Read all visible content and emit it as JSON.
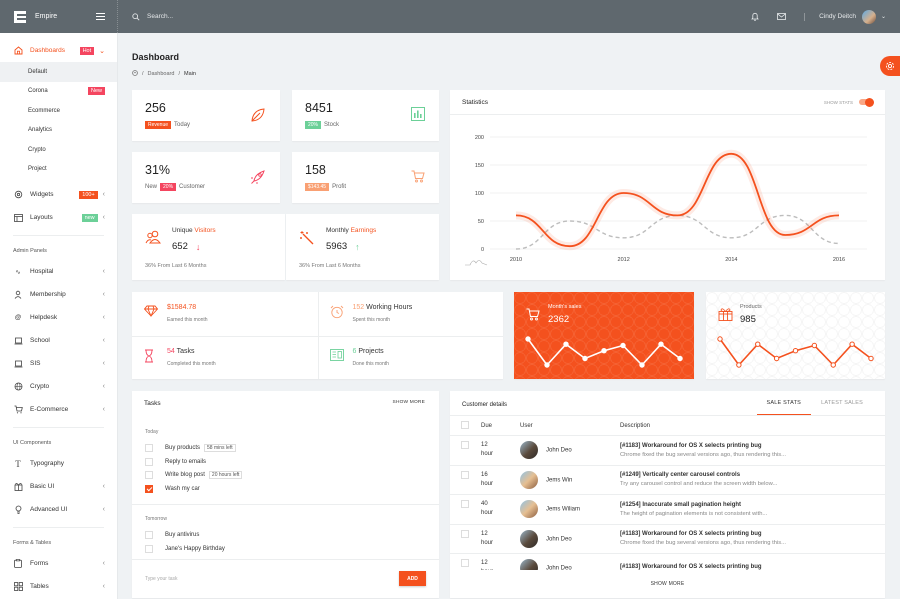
{
  "app": {
    "name": "Empire"
  },
  "topbar": {
    "search_placeholder": "Search...",
    "user_name": "Cindy Deitch"
  },
  "sidebar": {
    "dashboards": {
      "label": "Dashboards",
      "badge": "Hot"
    },
    "sub_items": [
      {
        "label": "Default"
      },
      {
        "label": "Corona",
        "badge": "New"
      },
      {
        "label": "Ecommerce"
      },
      {
        "label": "Analytics"
      },
      {
        "label": "Crypto"
      },
      {
        "label": "Project"
      }
    ],
    "widgets": {
      "label": "Widgets",
      "badge": "100+"
    },
    "layouts": {
      "label": "Layouts",
      "badge": "new"
    },
    "section_admin": "Admin Panels",
    "admin_items": [
      {
        "label": "Hospital",
        "icon": "pulse-icon"
      },
      {
        "label": "Membership",
        "icon": "user-icon"
      },
      {
        "label": "Helpdesk",
        "icon": "at-icon"
      },
      {
        "label": "School",
        "icon": "laptop-icon"
      },
      {
        "label": "SIS",
        "icon": "laptop-icon"
      },
      {
        "label": "Crypto",
        "icon": "globe-icon"
      },
      {
        "label": "E-Commerce",
        "icon": "cart-icon"
      }
    ],
    "section_ui": "UI Components",
    "ui_items": [
      {
        "label": "Typography",
        "icon": "text-icon"
      },
      {
        "label": "Basic UI",
        "icon": "gift-icon"
      },
      {
        "label": "Advanced UI",
        "icon": "bulb-icon"
      }
    ],
    "section_forms": "Forms & Tables",
    "forms_items": [
      {
        "label": "Forms",
        "icon": "clipboard-icon"
      },
      {
        "label": "Tables",
        "icon": "grid-icon"
      }
    ]
  },
  "page": {
    "title": "Dashboard",
    "breadcrumb": [
      "Dashboard",
      "Main"
    ]
  },
  "stats": [
    {
      "value": "256",
      "pill": "Revenue",
      "pill_color": "#f4511e",
      "suffix": "Today",
      "icon": "leaf-icon"
    },
    {
      "value": "8451",
      "pill": "20%",
      "pill_color": "#6cd098",
      "suffix": "Stock",
      "icon": "bar-chart-icon"
    },
    {
      "value": "31%",
      "prefix": "New",
      "pill": "20%",
      "pill_color": "#f4455f",
      "suffix": "Customer",
      "icon": "rocket-icon"
    },
    {
      "value": "158",
      "pill": "$143.45",
      "pill_color": "#f9a073",
      "suffix": "Profit",
      "icon": "cart-icon"
    }
  ],
  "visitors": {
    "title_a": "Unique",
    "title_b": "Visitors",
    "value": "652",
    "foot": "36% From Last 6 Months"
  },
  "earnings": {
    "title_a": "Monthly",
    "title_b": "Earnings",
    "value": "5963",
    "foot": "36% From Last 6 Months"
  },
  "statistics": {
    "title": "Statistics",
    "toggle_label": "SHOW STATS"
  },
  "chart_data": {
    "type": "line",
    "title": "Statistics",
    "x": [
      2010,
      2011,
      2012,
      2013,
      2014,
      2015,
      2016
    ],
    "x_tick_labels": [
      "2010",
      "2012",
      "2014",
      "2016"
    ],
    "series": [
      {
        "name": "primary",
        "color": "#f4511e",
        "style": "solid",
        "values": [
          60,
          5,
          100,
          60,
          170,
          25,
          60
        ]
      },
      {
        "name": "secondary",
        "color": "#bdbdbd",
        "style": "dashed",
        "values": [
          0,
          50,
          20,
          60,
          20,
          60,
          10
        ]
      }
    ],
    "y_ticks": [
      0,
      50,
      100,
      150,
      200
    ],
    "ylim": [
      0,
      200
    ],
    "grid": true,
    "xlabel": "",
    "ylabel": ""
  },
  "summary": [
    {
      "value": "$1584.78",
      "label": "",
      "sub": "Earned this month",
      "icon": "diamond-icon",
      "color": "#f4511e"
    },
    {
      "value": "152",
      "label": "Working Hours",
      "sub": "Spent this month",
      "icon": "alarm-clock-icon",
      "color": "#f9a073"
    },
    {
      "value": "54",
      "label": "Tasks",
      "sub": "Completed this month",
      "icon": "hourglass-icon",
      "color": "#f4455f"
    },
    {
      "value": "6",
      "label": "Projects",
      "sub": "Done this month",
      "icon": "news-icon",
      "color": "#6cd098"
    }
  ],
  "month_sales": {
    "label": "Month's sales",
    "value": "2362",
    "spark": [
      60,
      20,
      52,
      30,
      42,
      50,
      20,
      52,
      30
    ]
  },
  "products": {
    "label": "Products",
    "value": "985",
    "spark": [
      60,
      20,
      52,
      30,
      42,
      50,
      20,
      52,
      30
    ]
  },
  "tasks": {
    "title": "Tasks",
    "show_more": "SHOW MORE",
    "today_label": "Today",
    "today": [
      {
        "label": "Buy products",
        "tag": "58 mins left",
        "done": false
      },
      {
        "label": "Reply to emails",
        "tag": "",
        "done": false
      },
      {
        "label": "Write blog post",
        "tag": "20 hours left",
        "done": false
      },
      {
        "label": "Wash my car",
        "tag": "",
        "done": true
      }
    ],
    "tomorrow_label": "Tomorrow",
    "tomorrow": [
      {
        "label": "Buy antivirus",
        "done": false
      },
      {
        "label": "Jane's Happy Birthday",
        "done": false
      }
    ],
    "input_placeholder": "Type your task",
    "add_label": "ADD"
  },
  "customers": {
    "title": "Customer details",
    "tabs": [
      "SALE STATS",
      "LATEST SALES"
    ],
    "columns": [
      "Due",
      "User",
      "Description"
    ],
    "rows": [
      {
        "due": "12",
        "unit": "hour",
        "user": "John Deo",
        "title": "[#1183] Workaround for OS X selects printing bug",
        "desc": "Chrome fixed the bug several versions ago, thus rendering this..."
      },
      {
        "due": "16",
        "unit": "hour",
        "user": "Jems Win",
        "title": "[#1249] Vertically center carousel controls",
        "desc": "Try any carousel control and reduce the screen width below..."
      },
      {
        "due": "40",
        "unit": "hour",
        "user": "Jems Wiliam",
        "title": "[#1254] Inaccurate small pagination height",
        "desc": "The height of pagination elements is not consistent with..."
      },
      {
        "due": "12",
        "unit": "hour",
        "user": "John Deo",
        "title": "[#1183] Workaround for OS X selects printing bug",
        "desc": "Chrome fixed the bug several versions ago, thus rendering this..."
      },
      {
        "due": "12",
        "unit": "hour",
        "user": "John Deo",
        "title": "[#1183] Workaround for OS X selects printing bug",
        "desc": ""
      }
    ],
    "show_more": "SHOW MORE"
  },
  "colors": {
    "accent": "#f4511e",
    "topbar": "#5f686e",
    "green": "#6cd098",
    "red": "#f4455f"
  }
}
